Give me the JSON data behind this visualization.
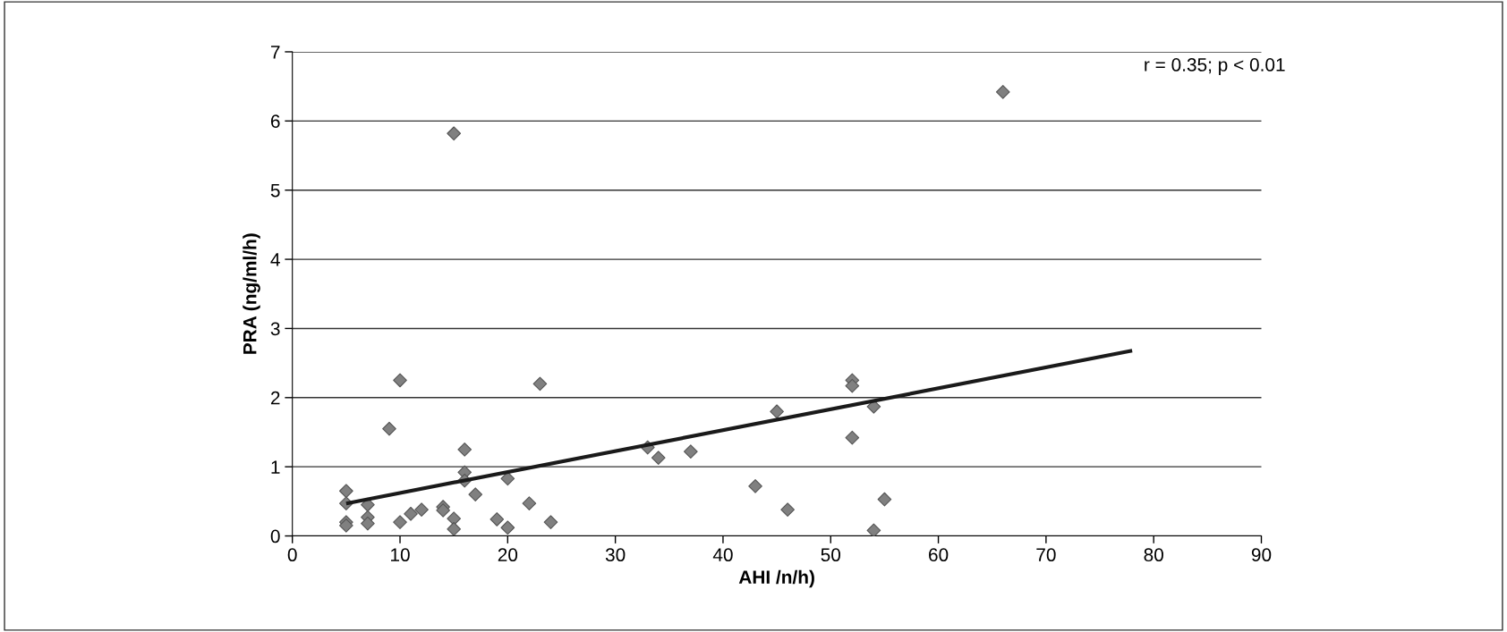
{
  "chart_data": {
    "type": "scatter",
    "xlabel": "AHI /n/h)",
    "ylabel": "PRA (ng/ml/h)",
    "xlim": [
      0,
      90
    ],
    "xticks": [
      0,
      10,
      20,
      30,
      40,
      50,
      60,
      70,
      80,
      90
    ],
    "ylim": [
      0,
      7
    ],
    "yticks": [
      0,
      1,
      2,
      3,
      4,
      5,
      6,
      7
    ],
    "grid": "y",
    "legend": false,
    "annotations": [
      "r = 0.35; p < 0.01"
    ],
    "series": [
      {
        "color": "#808080",
        "marker": "diamond",
        "x": [
          5,
          5,
          5,
          5,
          7,
          7,
          7,
          9,
          10,
          10,
          11,
          12,
          14,
          14,
          15,
          15,
          15,
          16,
          16,
          16,
          17,
          19,
          20,
          20,
          22,
          23,
          24,
          33,
          34,
          37,
          43,
          45,
          46,
          52,
          52,
          52,
          54,
          54,
          55,
          66
        ],
        "values": [
          0.65,
          0.47,
          0.2,
          0.15,
          0.45,
          0.27,
          0.18,
          1.55,
          2.25,
          0.2,
          0.32,
          0.38,
          0.42,
          0.37,
          0.25,
          0.1,
          5.82,
          1.25,
          0.92,
          0.8,
          0.6,
          0.24,
          0.12,
          0.83,
          0.47,
          2.2,
          0.2,
          1.28,
          1.13,
          1.22,
          0.72,
          1.8,
          0.38,
          2.25,
          2.17,
          1.42,
          1.87,
          0.08,
          0.53,
          6.42
        ]
      },
      {
        "type": "line",
        "color": "#1a1a1a",
        "line_style": "solid",
        "marker": "none",
        "x": [
          5,
          78
        ],
        "values": [
          0.47,
          2.68
        ]
      }
    ]
  }
}
